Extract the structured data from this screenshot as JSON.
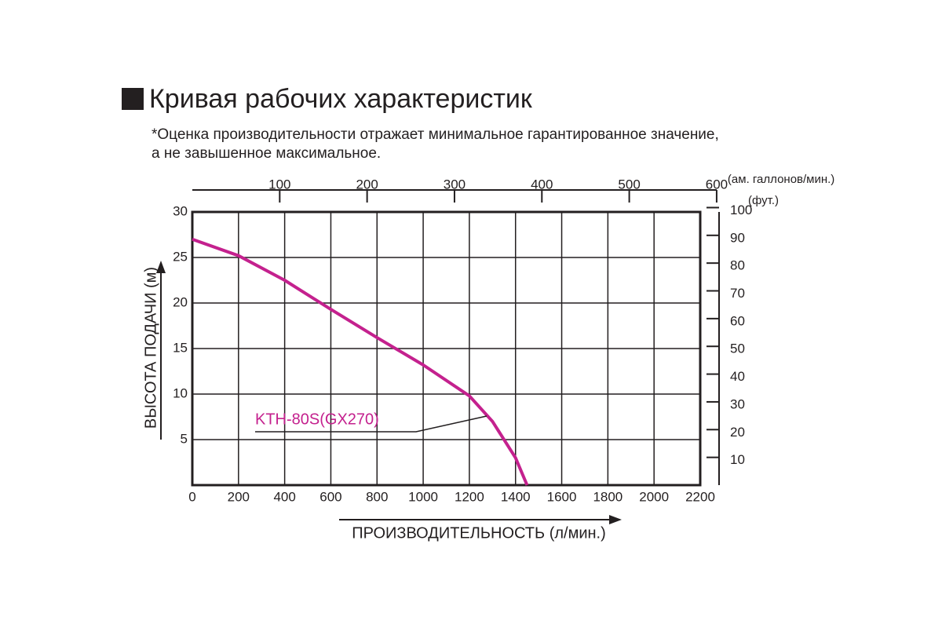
{
  "chart_data": {
    "type": "line",
    "title": "Кривая рабочих характеристик",
    "subtitle": [
      "*Оценка производительности отражает минимальное гарантированное значение,",
      "а не завышенное максимальное."
    ],
    "x": [
      0,
      200,
      400,
      600,
      800,
      1000,
      1200,
      1300,
      1400,
      1450
    ],
    "series": [
      {
        "name": "KTH-80S(GX270)",
        "color": "#c4218e",
        "values": [
          27,
          25.2,
          22.5,
          19.3,
          16.2,
          13.2,
          9.8,
          7,
          3,
          0
        ]
      }
    ],
    "xlim": [
      0,
      2200
    ],
    "xticks": [
      0,
      200,
      400,
      600,
      800,
      1000,
      1200,
      1400,
      1600,
      1800,
      2000,
      2200
    ],
    "ylim": [
      0,
      30
    ],
    "yticks": [
      5,
      10,
      15,
      20,
      25,
      30
    ],
    "grid": true,
    "x_label": "ПРОИЗВОДИТЕЛЬНОСТЬ (л/мин.)",
    "y_label": "ВЫСОТА ПОДАЧИ (м)",
    "x2lim": [
      0,
      581.2
    ],
    "x2ticks": [
      100,
      200,
      300,
      400,
      500,
      600
    ],
    "x2_label": "(ам. галлонов/мин.)",
    "y2lim": [
      0,
      98.43
    ],
    "y2ticks": [
      10,
      20,
      30,
      40,
      50,
      60,
      70,
      80,
      90,
      100
    ],
    "y2_label": "(фут.)"
  }
}
